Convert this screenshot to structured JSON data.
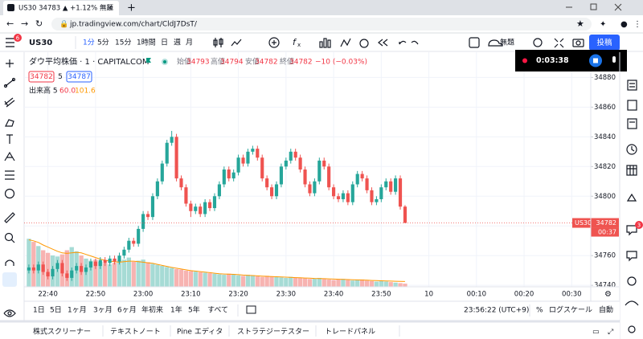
{
  "browser": {
    "tab_title": "US30 34783 ▲ +1.12% 無題",
    "url": "jp.tradingview.com/chart/CldJ7DsT/"
  },
  "toolbar": {
    "symbol": "US30",
    "intervals": [
      "1分",
      "5分",
      "15分",
      "1時間",
      "日",
      "週",
      "月"
    ],
    "layout_name": "無題",
    "publish": "投稿"
  },
  "recording": {
    "time": "0:03:38"
  },
  "legend": {
    "name": "ダウ平均株価 · 1 · CAPITALCOM",
    "open_label": "始値",
    "high_label": "高値",
    "low_label": "安値",
    "close_label": "終値",
    "change": "−10 (−0.03%)",
    "bid": "34782",
    "spread": "5",
    "ask": "34787",
    "volume_label": "出来高 5",
    "volume_value": "60.0"
  },
  "price_tag": {
    "symbol": "US30",
    "countdown": "00:37"
  },
  "badges": {
    "left": "6",
    "right": "3"
  },
  "chart_data": {
    "type": "candlestick",
    "x": [
      "22:36",
      "22:37",
      "22:38",
      "22:39",
      "22:40",
      "22:41",
      "22:42",
      "22:43",
      "22:44",
      "22:45",
      "22:46",
      "22:47",
      "22:48",
      "22:49",
      "22:50",
      "22:51",
      "22:52",
      "22:53",
      "22:54",
      "22:55",
      "22:56",
      "22:57",
      "22:58",
      "22:59",
      "23:00",
      "23:01",
      "23:02",
      "23:03",
      "23:04",
      "23:05",
      "23:06",
      "23:07",
      "23:08",
      "23:09",
      "23:10",
      "23:11",
      "23:12",
      "23:13",
      "23:14",
      "23:15",
      "23:16",
      "23:17",
      "23:18",
      "23:19",
      "23:20",
      "23:21",
      "23:22",
      "23:23",
      "23:24",
      "23:25",
      "23:26",
      "23:27",
      "23:28",
      "23:29",
      "23:30",
      "23:31",
      "23:32",
      "23:33",
      "23:34",
      "23:35",
      "23:36",
      "23:37",
      "23:38",
      "23:39",
      "23:40",
      "23:41",
      "23:42",
      "23:43",
      "23:44",
      "23:45",
      "23:46",
      "23:47",
      "23:48",
      "23:49",
      "23:50",
      "23:51",
      "23:52",
      "23:53",
      "23:54",
      "23:55"
    ],
    "open": [
      34750,
      34752,
      34750,
      34754,
      34749,
      34746,
      34751,
      34755,
      34748,
      34745,
      34750,
      34753,
      34749,
      34752,
      34756,
      34753,
      34757,
      34755,
      34758,
      34756,
      34760,
      34764,
      34770,
      34768,
      34778,
      34788,
      34786,
      34800,
      34810,
      34822,
      34836,
      34840,
      34812,
      34806,
      34795,
      34790,
      34793,
      34788,
      34796,
      34792,
      34800,
      34808,
      34818,
      34812,
      34816,
      34826,
      34822,
      34830,
      34832,
      34826,
      34812,
      34806,
      34800,
      34808,
      34820,
      34824,
      34830,
      34826,
      34818,
      34808,
      34802,
      34810,
      34824,
      34820,
      34806,
      34800,
      34798,
      34802,
      34796,
      34808,
      34815,
      34812,
      34804,
      34796,
      34798,
      34806,
      34810,
      34803,
      34812,
      34793
    ],
    "high": [
      34754,
      34754,
      34756,
      34756,
      34751,
      34753,
      34757,
      34757,
      34750,
      34752,
      34755,
      34755,
      34754,
      34758,
      34758,
      34759,
      34759,
      34760,
      34760,
      34762,
      34766,
      34772,
      34772,
      34780,
      34790,
      34790,
      34802,
      34812,
      34824,
      34838,
      34844,
      34842,
      34814,
      34808,
      34797,
      34795,
      34795,
      34798,
      34798,
      34802,
      34810,
      34820,
      34820,
      34818,
      34828,
      34828,
      34832,
      34834,
      34834,
      34828,
      34814,
      34808,
      34810,
      34822,
      34826,
      34832,
      34832,
      34828,
      34820,
      34810,
      34812,
      34826,
      34826,
      34822,
      34808,
      34802,
      34804,
      34804,
      34810,
      34817,
      34817,
      34814,
      34806,
      34800,
      34808,
      34812,
      34812,
      34814,
      34814,
      34794
    ],
    "low": [
      34748,
      34748,
      34748,
      34747,
      34744,
      34744,
      34749,
      34746,
      34743,
      34743,
      34748,
      34747,
      34747,
      34750,
      34751,
      34751,
      34753,
      34753,
      34754,
      34754,
      34758,
      34762,
      34766,
      34766,
      34776,
      34784,
      34784,
      34798,
      34808,
      34820,
      34834,
      34810,
      34804,
      34793,
      34786,
      34788,
      34786,
      34786,
      34790,
      34790,
      34798,
      34806,
      34810,
      34810,
      34814,
      34820,
      34820,
      34828,
      34824,
      34810,
      34804,
      34798,
      34798,
      34806,
      34818,
      34822,
      34824,
      34816,
      34806,
      34800,
      34800,
      34808,
      34818,
      34804,
      34798,
      34796,
      34796,
      34794,
      34794,
      34806,
      34810,
      34802,
      34794,
      34794,
      34796,
      34804,
      34801,
      34801,
      34791,
      34782
    ],
    "close": [
      34752,
      34750,
      34754,
      34749,
      34746,
      34751,
      34755,
      34748,
      34745,
      34750,
      34753,
      34749,
      34752,
      34756,
      34753,
      34757,
      34755,
      34758,
      34756,
      34760,
      34764,
      34770,
      34768,
      34778,
      34788,
      34786,
      34800,
      34810,
      34822,
      34836,
      34840,
      34812,
      34806,
      34795,
      34790,
      34793,
      34788,
      34796,
      34792,
      34800,
      34808,
      34818,
      34812,
      34816,
      34826,
      34822,
      34830,
      34832,
      34826,
      34812,
      34806,
      34800,
      34808,
      34820,
      34824,
      34830,
      34826,
      34818,
      34808,
      34802,
      34810,
      34824,
      34820,
      34806,
      34800,
      34798,
      34802,
      34796,
      34808,
      34815,
      34812,
      34804,
      34796,
      34798,
      34806,
      34810,
      34803,
      34812,
      34793,
      34782
    ],
    "colors": {
      "up": "#26a69a",
      "down": "#ef5350"
    },
    "ylim": [
      34739,
      34897
    ],
    "yticks": [
      34740,
      34760,
      34780,
      34800,
      34820,
      34840,
      34860,
      34880
    ],
    "xlim": [
      "22:35",
      "00:34"
    ],
    "xticks": [
      "22:40",
      "22:50",
      "23:00",
      "23:10",
      "23:20",
      "23:30",
      "23:40",
      "23:50",
      {
        "value": "00:00",
        "label": "10"
      },
      "00:10",
      "00:20",
      "00:30"
    ],
    "grid": true,
    "volume": {
      "values": [
        920,
        860,
        780,
        700,
        650,
        600,
        580,
        620,
        700,
        760,
        680,
        600,
        540,
        500,
        520,
        480,
        450,
        430,
        460,
        500,
        520,
        560,
        480,
        500,
        520,
        470,
        440,
        420,
        400,
        380,
        360,
        340,
        330,
        310,
        300,
        290,
        280,
        270,
        260,
        250,
        240,
        230,
        250,
        240,
        220,
        210,
        230,
        220,
        200,
        190,
        210,
        200,
        190,
        180,
        170,
        190,
        180,
        170,
        160,
        150,
        160,
        170,
        150,
        140,
        130,
        140,
        150,
        130,
        120,
        130,
        140,
        120,
        110,
        100,
        110,
        100,
        90,
        80,
        70,
        60
      ],
      "ma": [
        900,
        880,
        850,
        800,
        760,
        720,
        680,
        650,
        640,
        650,
        660,
        650,
        620,
        590,
        560,
        530,
        510,
        490,
        480,
        470,
        480,
        490,
        490,
        480,
        470,
        460,
        450,
        430,
        410,
        390,
        370,
        355,
        340,
        325,
        310,
        300,
        290,
        280,
        270,
        260,
        250,
        245,
        242,
        238,
        232,
        225,
        220,
        215,
        210,
        205,
        200,
        196,
        192,
        188,
        184,
        180,
        176,
        172,
        168,
        164,
        160,
        158,
        156,
        152,
        148,
        144,
        141,
        138,
        135,
        132,
        129,
        126,
        122,
        118,
        115,
        112,
        109,
        106,
        104,
        101.6
      ],
      "ylim": [
        0,
        1000
      ],
      "colors": {
        "up": "#a6dbd5",
        "down": "#f7b3b1"
      },
      "ma_color": "#ff9800"
    }
  },
  "range_bar": {
    "ranges": [
      "1日",
      "5日",
      "1ヶ月",
      "3ヶ月",
      "6ヶ月",
      "年初来",
      "1年",
      "5年",
      "すべて"
    ],
    "clock": "23:56:22 (UTC+9)",
    "percent": "%",
    "log": "ログスケール",
    "auto": "自動"
  },
  "tabs": [
    "株式スクリーナー",
    "テキストノート",
    "Pine エディタ",
    "ストラテジーテスター",
    "トレードパネル"
  ]
}
